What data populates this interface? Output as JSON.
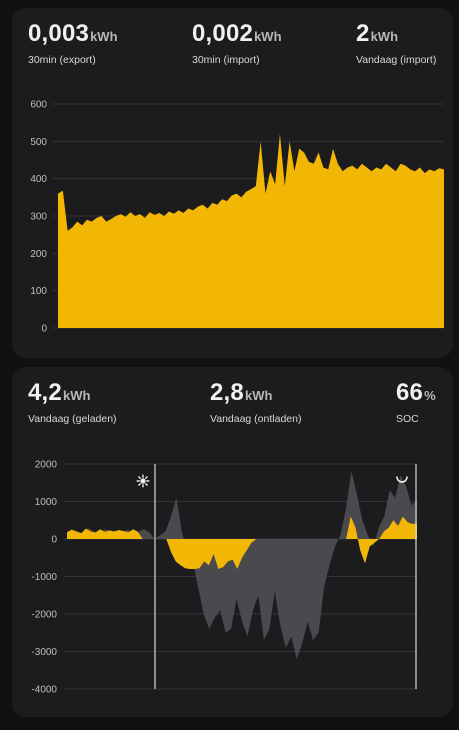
{
  "energy_card": {
    "stats": [
      {
        "value": "0,003",
        "unit": "kWh",
        "label": "30min (export)"
      },
      {
        "value": "0,002",
        "unit": "kWh",
        "label": "30min (import)"
      },
      {
        "value": "2",
        "unit": "kWh",
        "label": "Vandaag (import)"
      }
    ]
  },
  "battery_card": {
    "stats": [
      {
        "value": "4,2",
        "unit": "kWh",
        "label": "Vandaag (geladen)"
      },
      {
        "value": "2,8",
        "unit": "kWh",
        "label": "Vandaag (ontladen)"
      },
      {
        "value": "66",
        "unit": "%",
        "label": "SOC"
      }
    ],
    "icons": {
      "sunrise": "sun-icon",
      "sunset": "moon-icon"
    }
  },
  "colors": {
    "card": "#1c1c1e",
    "accent": "#f2b705",
    "secondary": "#4a494e",
    "grid": "#333336"
  },
  "chart_data": [
    {
      "type": "area",
      "ylim": [
        0,
        600
      ],
      "yticks": [
        "0",
        "100",
        "200",
        "300",
        "400",
        "500",
        "600"
      ],
      "series": [
        {
          "values": [
            360,
            368,
            260,
            270,
            285,
            275,
            290,
            285,
            295,
            300,
            285,
            292,
            300,
            305,
            298,
            310,
            300,
            305,
            295,
            310,
            303,
            308,
            300,
            312,
            306,
            315,
            308,
            320,
            315,
            325,
            330,
            320,
            335,
            330,
            345,
            340,
            355,
            360,
            350,
            365,
            372,
            380,
            500,
            360,
            420,
            385,
            520,
            380,
            500,
            420,
            480,
            470,
            445,
            440,
            470,
            430,
            425,
            480,
            440,
            420,
            430,
            435,
            425,
            440,
            430,
            420,
            430,
            425,
            440,
            430,
            420,
            440,
            435,
            425,
            420,
            430,
            415,
            425,
            420,
            428,
            425
          ]
        }
      ]
    },
    {
      "type": "area",
      "ylim": [
        -4000,
        2000
      ],
      "yticks": [
        "-4000",
        "-3000",
        "-2000",
        "-1000",
        "0",
        "1000",
        "2000"
      ],
      "series": [
        {
          "values": [
            180,
            250,
            200,
            150,
            280,
            200,
            170,
            260,
            190,
            230,
            200,
            240,
            210,
            180,
            260,
            190,
            0,
            0,
            0,
            0,
            0,
            0,
            -350,
            -600,
            -700,
            -780,
            -800,
            -800,
            -780,
            -600,
            -700,
            -400,
            -800,
            -750,
            -600,
            -550,
            -800,
            -500,
            -300,
            -100,
            0,
            0,
            0,
            0,
            0,
            0,
            0,
            0,
            0,
            0,
            0,
            0,
            0,
            0,
            0,
            0,
            0,
            0,
            0,
            0,
            600,
            300,
            -300,
            -650,
            -200,
            -100,
            0,
            200,
            300,
            500,
            350,
            600,
            450,
            400,
            420
          ]
        },
        {
          "values": [
            180,
            250,
            200,
            150,
            280,
            200,
            170,
            260,
            190,
            230,
            200,
            240,
            210,
            180,
            260,
            190,
            0,
            100,
            200,
            600,
            1100,
            200,
            -350,
            -600,
            -1300,
            -2000,
            -2400,
            -2100,
            -1900,
            -2500,
            -2400,
            -1600,
            -2200,
            -2600,
            -1900,
            -1500,
            -2700,
            -2400,
            -1400,
            -2300,
            -2900,
            -2600,
            -3200,
            -2800,
            -2200,
            -2700,
            -2500,
            -1300,
            -700,
            -200,
            100,
            800,
            1800,
            1200,
            500,
            100,
            -200,
            300,
            600,
            1300,
            1100,
            1700,
            1400,
            900,
            1050
          ]
        }
      ],
      "annotations": [
        "sunrise",
        "sunset"
      ]
    }
  ]
}
